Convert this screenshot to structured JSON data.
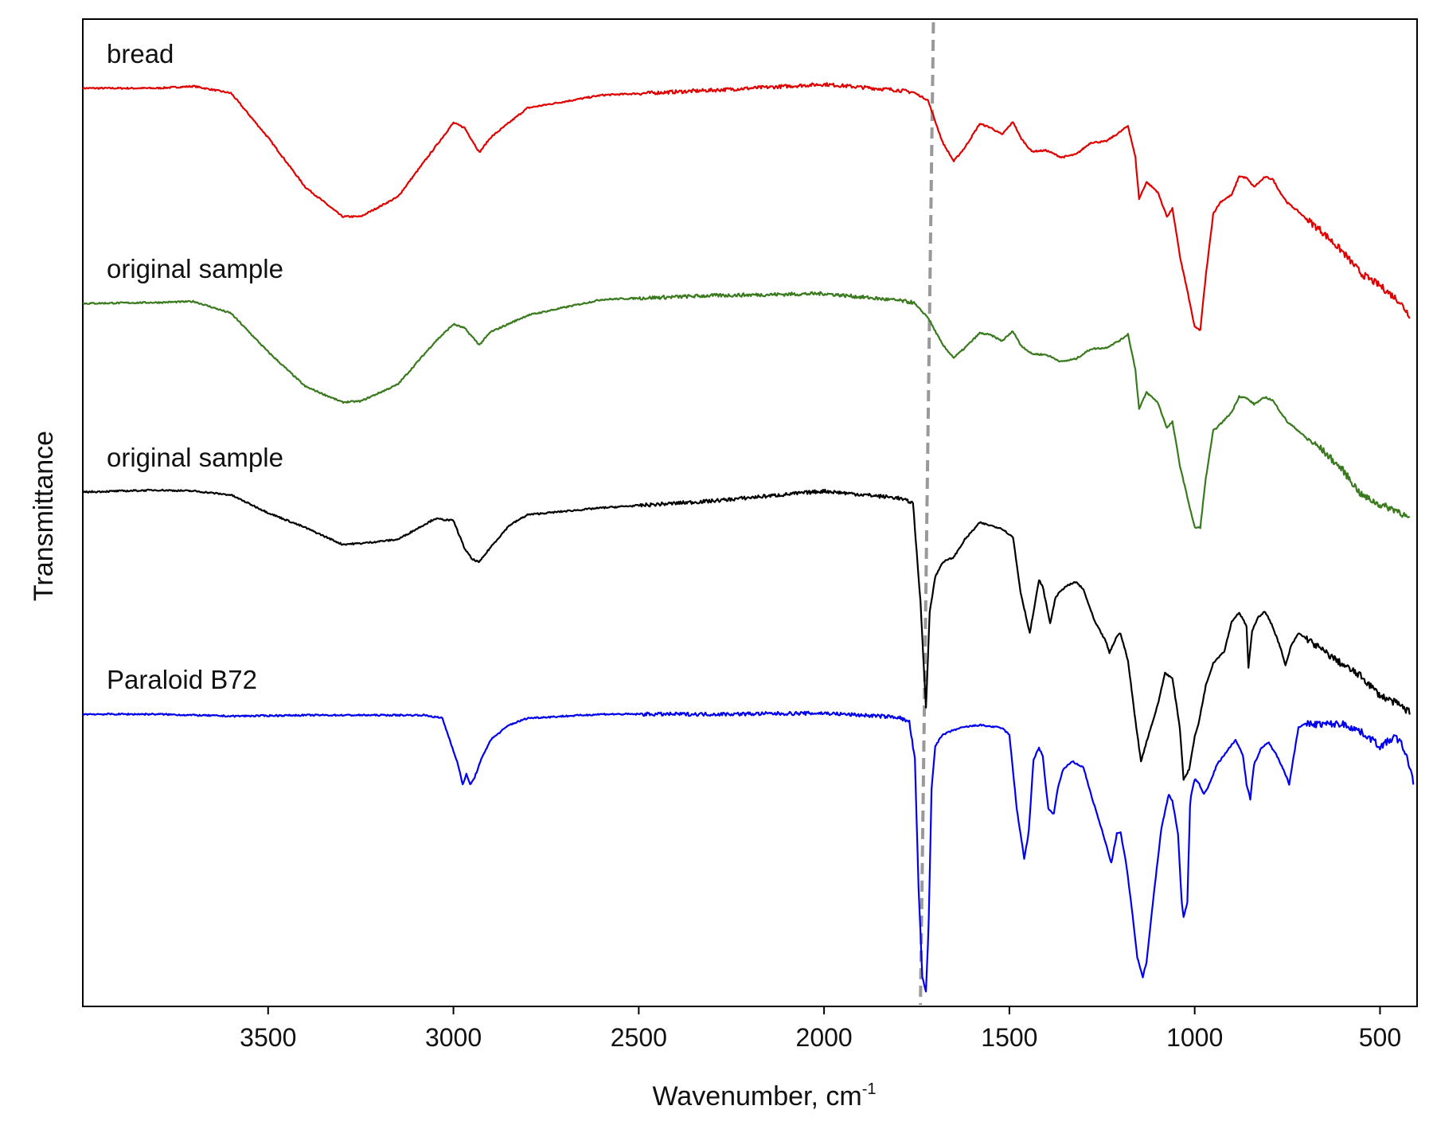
{
  "chart_data": {
    "type": "line",
    "title": "",
    "xlabel": "Wavenumber, cm",
    "xlabel_superscript": "-1",
    "ylabel": "Transmittance",
    "xlim": [
      4000,
      400
    ],
    "x_reversed": true,
    "ylim": [
      0,
      100
    ],
    "y_ticks_shown": false,
    "grid": false,
    "legend": "none",
    "x_ticks": [
      3500,
      3000,
      2500,
      2000,
      1500,
      1000,
      500
    ],
    "reference_line": {
      "x_top": 1705,
      "x_bottom": 1740,
      "style": "dashed",
      "color": "#999999"
    },
    "series": [
      {
        "name": "bread",
        "color": "#e00000",
        "points": [
          [
            4000,
            93
          ],
          [
            3800,
            93
          ],
          [
            3700,
            93.2
          ],
          [
            3600,
            92.5
          ],
          [
            3500,
            88
          ],
          [
            3400,
            83
          ],
          [
            3300,
            80
          ],
          [
            3250,
            80
          ],
          [
            3150,
            82
          ],
          [
            3050,
            87
          ],
          [
            3000,
            89.5
          ],
          [
            2970,
            89
          ],
          [
            2930,
            86.5
          ],
          [
            2900,
            88
          ],
          [
            2800,
            91
          ],
          [
            2600,
            92.3
          ],
          [
            2300,
            92.8
          ],
          [
            2000,
            93.4
          ],
          [
            1800,
            92.8
          ],
          [
            1760,
            92.6
          ],
          [
            1720,
            91.8
          ],
          [
            1680,
            87.5
          ],
          [
            1650,
            85.6
          ],
          [
            1620,
            87
          ],
          [
            1580,
            89.4
          ],
          [
            1550,
            89
          ],
          [
            1520,
            88.3
          ],
          [
            1490,
            89.6
          ],
          [
            1470,
            88
          ],
          [
            1440,
            86.6
          ],
          [
            1400,
            86.7
          ],
          [
            1360,
            86
          ],
          [
            1320,
            86.3
          ],
          [
            1280,
            87.5
          ],
          [
            1240,
            87.6
          ],
          [
            1200,
            88.6
          ],
          [
            1180,
            89.2
          ],
          [
            1160,
            86
          ],
          [
            1150,
            81.8
          ],
          [
            1130,
            83.5
          ],
          [
            1100,
            82.5
          ],
          [
            1075,
            80
          ],
          [
            1060,
            80.8
          ],
          [
            1040,
            76
          ],
          [
            1020,
            72.5
          ],
          [
            1000,
            68.8
          ],
          [
            985,
            68.5
          ],
          [
            970,
            74
          ],
          [
            950,
            80.3
          ],
          [
            930,
            81.5
          ],
          [
            900,
            82.2
          ],
          [
            880,
            84.1
          ],
          [
            860,
            83.9
          ],
          [
            840,
            83
          ],
          [
            810,
            84
          ],
          [
            790,
            83.8
          ],
          [
            770,
            82.5
          ],
          [
            750,
            81.4
          ],
          [
            720,
            80.5
          ],
          [
            700,
            79.8
          ],
          [
            660,
            78.6
          ],
          [
            600,
            76.4
          ],
          [
            550,
            74.2
          ],
          [
            500,
            73
          ],
          [
            450,
            71.5
          ],
          [
            420,
            70
          ]
        ]
      },
      {
        "name": "original sample",
        "color": "#3a7a1e",
        "points": [
          [
            4000,
            71.2
          ],
          [
            3800,
            71.3
          ],
          [
            3700,
            71.4
          ],
          [
            3600,
            70.2
          ],
          [
            3500,
            66.3
          ],
          [
            3400,
            62.8
          ],
          [
            3300,
            61.2
          ],
          [
            3250,
            61.3
          ],
          [
            3150,
            63
          ],
          [
            3050,
            67.3
          ],
          [
            3000,
            69.1
          ],
          [
            2970,
            68.7
          ],
          [
            2930,
            67
          ],
          [
            2900,
            68.3
          ],
          [
            2800,
            70
          ],
          [
            2600,
            71.6
          ],
          [
            2300,
            72
          ],
          [
            2000,
            72.2
          ],
          [
            1800,
            71.5
          ],
          [
            1760,
            71.3
          ],
          [
            1720,
            69.8
          ],
          [
            1680,
            67
          ],
          [
            1650,
            65.7
          ],
          [
            1620,
            66.7
          ],
          [
            1580,
            68.2
          ],
          [
            1550,
            68
          ],
          [
            1520,
            67.4
          ],
          [
            1490,
            68.4
          ],
          [
            1470,
            67
          ],
          [
            1440,
            66.1
          ],
          [
            1400,
            66
          ],
          [
            1360,
            65.3
          ],
          [
            1320,
            65.6
          ],
          [
            1280,
            66.6
          ],
          [
            1240,
            66.7
          ],
          [
            1200,
            67.5
          ],
          [
            1180,
            68.1
          ],
          [
            1160,
            64.5
          ],
          [
            1150,
            60.5
          ],
          [
            1130,
            62.2
          ],
          [
            1100,
            61.2
          ],
          [
            1075,
            58.6
          ],
          [
            1060,
            59.2
          ],
          [
            1040,
            54.8
          ],
          [
            1020,
            51.6
          ],
          [
            1000,
            48.5
          ],
          [
            985,
            48.5
          ],
          [
            970,
            53.5
          ],
          [
            950,
            58.3
          ],
          [
            930,
            59
          ],
          [
            900,
            60.2
          ],
          [
            880,
            61.8
          ],
          [
            860,
            61.6
          ],
          [
            840,
            61
          ],
          [
            810,
            61.7
          ],
          [
            790,
            61.4
          ],
          [
            770,
            60.3
          ],
          [
            750,
            59.2
          ],
          [
            720,
            58.3
          ],
          [
            700,
            57.6
          ],
          [
            660,
            56.5
          ],
          [
            600,
            54.3
          ],
          [
            550,
            51.8
          ],
          [
            500,
            50.8
          ],
          [
            450,
            50.2
          ],
          [
            420,
            49.3
          ]
        ]
      },
      {
        "name": "original sample",
        "color": "#000000",
        "points": [
          [
            4000,
            52.1
          ],
          [
            3800,
            52.3
          ],
          [
            3700,
            52.2
          ],
          [
            3600,
            51.8
          ],
          [
            3500,
            50
          ],
          [
            3400,
            48.5
          ],
          [
            3300,
            46.8
          ],
          [
            3250,
            46.9
          ],
          [
            3150,
            47.3
          ],
          [
            3050,
            49.4
          ],
          [
            3000,
            49.2
          ],
          [
            2970,
            46.4
          ],
          [
            2950,
            45.3
          ],
          [
            2930,
            45
          ],
          [
            2900,
            46.5
          ],
          [
            2850,
            48.7
          ],
          [
            2800,
            49.8
          ],
          [
            2600,
            50.5
          ],
          [
            2300,
            51.2
          ],
          [
            2000,
            52.2
          ],
          [
            1800,
            51.5
          ],
          [
            1760,
            51
          ],
          [
            1740,
            41
          ],
          [
            1725,
            30.2
          ],
          [
            1715,
            40
          ],
          [
            1700,
            43.5
          ],
          [
            1680,
            45
          ],
          [
            1650,
            45.5
          ],
          [
            1620,
            47.3
          ],
          [
            1580,
            49
          ],
          [
            1520,
            48.4
          ],
          [
            1490,
            47.5
          ],
          [
            1470,
            42
          ],
          [
            1445,
            37.8
          ],
          [
            1430,
            41
          ],
          [
            1420,
            43.2
          ],
          [
            1410,
            42.5
          ],
          [
            1390,
            38.8
          ],
          [
            1375,
            41.5
          ],
          [
            1350,
            42.5
          ],
          [
            1320,
            43
          ],
          [
            1300,
            42.2
          ],
          [
            1270,
            39
          ],
          [
            1240,
            37
          ],
          [
            1230,
            35.8
          ],
          [
            1210,
            37.5
          ],
          [
            1200,
            37.8
          ],
          [
            1180,
            35
          ],
          [
            1160,
            29
          ],
          [
            1145,
            24.8
          ],
          [
            1130,
            26.8
          ],
          [
            1100,
            30.5
          ],
          [
            1080,
            33.8
          ],
          [
            1060,
            33.2
          ],
          [
            1040,
            28.2
          ],
          [
            1030,
            23
          ],
          [
            1015,
            24
          ],
          [
            1000,
            27.3
          ],
          [
            990,
            28.6
          ],
          [
            970,
            32.5
          ],
          [
            950,
            34.8
          ],
          [
            920,
            36
          ],
          [
            900,
            39
          ],
          [
            880,
            39.9
          ],
          [
            860,
            38.5
          ],
          [
            855,
            34.3
          ],
          [
            845,
            38
          ],
          [
            830,
            39.4
          ],
          [
            810,
            40
          ],
          [
            790,
            38.5
          ],
          [
            770,
            36.5
          ],
          [
            755,
            34.5
          ],
          [
            740,
            36.5
          ],
          [
            720,
            37.8
          ],
          [
            700,
            37.3
          ],
          [
            660,
            36.2
          ],
          [
            600,
            34.6
          ],
          [
            550,
            33.4
          ],
          [
            500,
            31.5
          ],
          [
            450,
            30.6
          ],
          [
            420,
            29.8
          ]
        ]
      },
      {
        "name": "Paraloid B72",
        "color": "#0000ee",
        "points": [
          [
            4000,
            29.6
          ],
          [
            3800,
            29.6
          ],
          [
            3600,
            29.4
          ],
          [
            3400,
            29.5
          ],
          [
            3200,
            29.5
          ],
          [
            3080,
            29.5
          ],
          [
            3030,
            29.2
          ],
          [
            3010,
            27
          ],
          [
            2990,
            24.8
          ],
          [
            2975,
            22.5
          ],
          [
            2965,
            23.5
          ],
          [
            2955,
            22.5
          ],
          [
            2945,
            23
          ],
          [
            2925,
            25
          ],
          [
            2900,
            27
          ],
          [
            2850,
            28.5
          ],
          [
            2800,
            29.2
          ],
          [
            2600,
            29.6
          ],
          [
            2300,
            29.6
          ],
          [
            2000,
            29.7
          ],
          [
            1800,
            29.3
          ],
          [
            1770,
            28.8
          ],
          [
            1755,
            25
          ],
          [
            1745,
            12
          ],
          [
            1735,
            3
          ],
          [
            1725,
            1.5
          ],
          [
            1718,
            8
          ],
          [
            1710,
            22
          ],
          [
            1700,
            26.4
          ],
          [
            1680,
            27.5
          ],
          [
            1650,
            28
          ],
          [
            1620,
            28.3
          ],
          [
            1580,
            28.5
          ],
          [
            1520,
            28.2
          ],
          [
            1500,
            27.5
          ],
          [
            1480,
            20
          ],
          [
            1460,
            15
          ],
          [
            1448,
            17.5
          ],
          [
            1435,
            25
          ],
          [
            1420,
            26.2
          ],
          [
            1410,
            25.3
          ],
          [
            1395,
            20
          ],
          [
            1380,
            19.5
          ],
          [
            1370,
            22
          ],
          [
            1355,
            24
          ],
          [
            1330,
            24.8
          ],
          [
            1300,
            24.2
          ],
          [
            1280,
            21.5
          ],
          [
            1250,
            17.8
          ],
          [
            1240,
            16.5
          ],
          [
            1225,
            14.5
          ],
          [
            1210,
            17.5
          ],
          [
            1200,
            17.6
          ],
          [
            1185,
            14.5
          ],
          [
            1170,
            10
          ],
          [
            1155,
            5
          ],
          [
            1140,
            3
          ],
          [
            1130,
            4.5
          ],
          [
            1110,
            11.5
          ],
          [
            1090,
            18
          ],
          [
            1070,
            21.5
          ],
          [
            1060,
            20.8
          ],
          [
            1045,
            17.5
          ],
          [
            1035,
            10.5
          ],
          [
            1030,
            9
          ],
          [
            1020,
            10.5
          ],
          [
            1012,
            21
          ],
          [
            1000,
            23
          ],
          [
            990,
            22.7
          ],
          [
            975,
            21.5
          ],
          [
            960,
            22.5
          ],
          [
            940,
            24.5
          ],
          [
            910,
            26
          ],
          [
            890,
            27
          ],
          [
            870,
            25.5
          ],
          [
            860,
            22.5
          ],
          [
            850,
            21
          ],
          [
            840,
            24.5
          ],
          [
            820,
            26.2
          ],
          [
            800,
            26.7
          ],
          [
            780,
            25.5
          ],
          [
            760,
            24
          ],
          [
            745,
            22.5
          ],
          [
            730,
            26
          ],
          [
            720,
            28.3
          ],
          [
            700,
            28.6
          ],
          [
            600,
            28.6
          ],
          [
            560,
            28
          ],
          [
            520,
            27
          ],
          [
            500,
            26.3
          ],
          [
            480,
            26.8
          ],
          [
            460,
            27.3
          ],
          [
            440,
            26.5
          ],
          [
            420,
            24.3
          ],
          [
            410,
            22.8
          ]
        ]
      }
    ],
    "series_label_positions": [
      "top-left above trace",
      "top-left above trace",
      "top-left above trace",
      "top-left above trace"
    ]
  }
}
